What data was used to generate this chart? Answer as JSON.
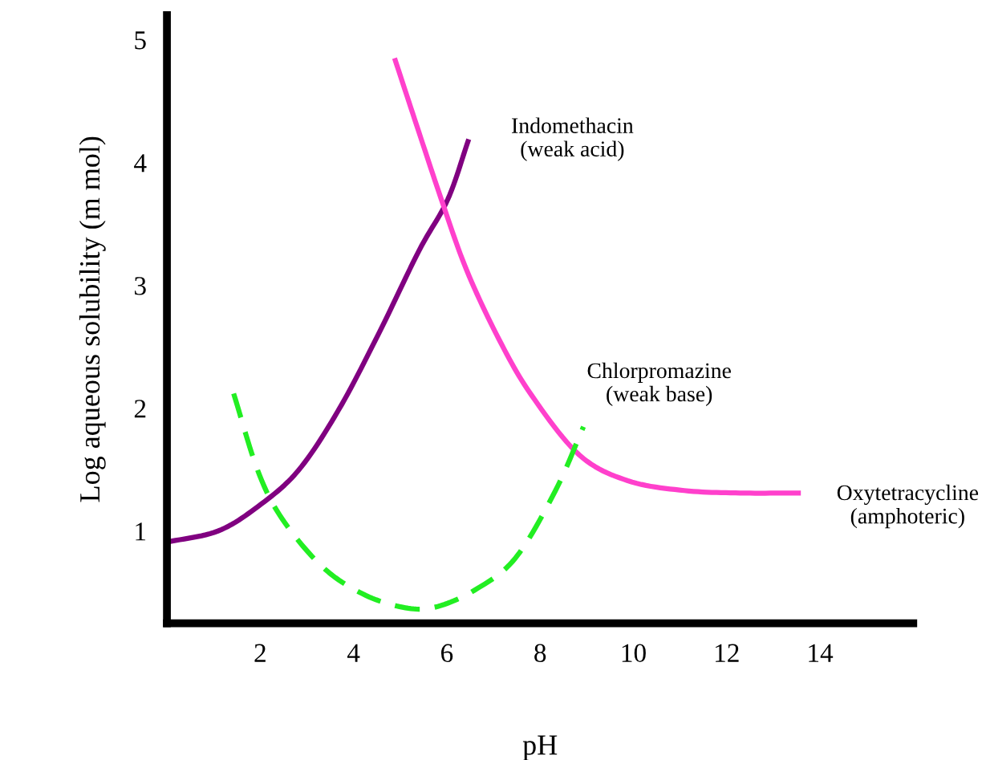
{
  "chart_data": {
    "type": "line",
    "xlabel": "pH",
    "ylabel": "Log aqueous solubility (m mol)",
    "xlim": [
      0,
      16
    ],
    "ylim": [
      0.25,
      5.2
    ],
    "xticks": [
      2,
      4,
      6,
      8,
      10,
      12,
      14
    ],
    "yticks": [
      1,
      2,
      3,
      4,
      5
    ],
    "grid": false,
    "legend": false,
    "series": [
      {
        "name": "Indomethacin\n(weak acid)",
        "color": "#800080",
        "line_style": "solid",
        "x": [
          0,
          1.09,
          1.95,
          2.81,
          3.67,
          4.53,
          5.4,
          6.02,
          6.47
        ],
        "values": [
          0.91,
          1.0,
          1.2,
          1.49,
          1.98,
          2.6,
          3.28,
          3.7,
          4.19
        ]
      },
      {
        "name": "Oxytetracycline\n(amphoteric)",
        "color": "#ff40cc",
        "line_style": "solid",
        "x": [
          4.88,
          5.4,
          5.91,
          6.43,
          7.12,
          7.81,
          8.84,
          9.88,
          11.09,
          12.29,
          13.59
        ],
        "values": [
          4.85,
          4.25,
          3.67,
          3.12,
          2.56,
          2.11,
          1.62,
          1.41,
          1.33,
          1.31,
          1.31
        ]
      },
      {
        "name": "Chlorpromazine\n(weak base)",
        "color": "#22ee22",
        "line_style": "dashed",
        "x": [
          1.43,
          1.95,
          2.47,
          3.33,
          4.19,
          5.05,
          5.74,
          6.6,
          7.47,
          8.33,
          8.93
        ],
        "values": [
          2.12,
          1.49,
          1.1,
          0.71,
          0.49,
          0.38,
          0.38,
          0.52,
          0.78,
          1.33,
          1.85
        ]
      }
    ]
  }
}
